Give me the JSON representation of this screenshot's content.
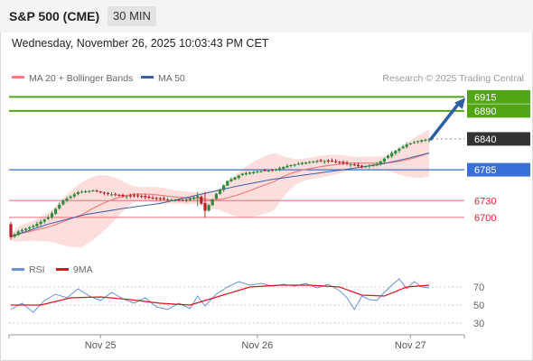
{
  "header": {
    "symbol": "S&P 500 (CME)",
    "timeframe": "30 MIN",
    "datetime": "Wednesday, November 26, 2025 10:03:43 PM CET"
  },
  "colors": {
    "ma20": "#f07c7c",
    "ma20_band_fill": "#fbd4d2",
    "ma50": "#3b5fa8",
    "candle_up": "#2f8a3e",
    "candle_down": "#b81f26",
    "target_line": "#52a515",
    "support_line": "#3a6fd8",
    "resistance_line": "#e46f7a",
    "pivot_box": "#333333",
    "rsi": "#6b8fd8",
    "rsi_ma": "#e0121e",
    "arrow": "#2b5fa2"
  },
  "chart_data": [
    {
      "type": "candlestick",
      "legend": [
        {
          "label": "MA 20 + Bollinger Bands",
          "color": "#f07c7c"
        },
        {
          "label": "MA 50",
          "color": "#3b5fa8"
        }
      ],
      "watermark": "Research © 2025 Trading Central",
      "x_ticks": [
        "Nov 25",
        "Nov 26",
        "Nov 27"
      ],
      "ylim": [
        6650,
        6930
      ],
      "levels": [
        {
          "value": 6915,
          "label": "6915",
          "kind": "target",
          "style": "box"
        },
        {
          "value": 6890,
          "label": "6890",
          "kind": "target",
          "style": "box"
        },
        {
          "value": 6840,
          "label": "6840",
          "kind": "pivot",
          "style": "box"
        },
        {
          "value": 6785,
          "label": "6785",
          "kind": "support",
          "style": "box"
        },
        {
          "value": 6730,
          "label": "6730",
          "kind": "resistance",
          "style": "text"
        },
        {
          "value": 6700,
          "label": "6700",
          "kind": "resistance",
          "style": "text"
        }
      ],
      "anchors": [
        [
          0,
          6665
        ],
        [
          2,
          6675
        ],
        [
          6,
          6685
        ],
        [
          10,
          6700
        ],
        [
          14,
          6730
        ],
        [
          18,
          6745
        ],
        [
          22,
          6748
        ],
        [
          26,
          6742
        ],
        [
          30,
          6738
        ],
        [
          34,
          6738
        ],
        [
          38,
          6734
        ],
        [
          42,
          6732
        ],
        [
          46,
          6730
        ],
        [
          50,
          6738
        ],
        [
          52,
          6712
        ],
        [
          55,
          6742
        ],
        [
          58,
          6765
        ],
        [
          62,
          6778
        ],
        [
          66,
          6782
        ],
        [
          70,
          6784
        ],
        [
          74,
          6792
        ],
        [
          78,
          6797
        ],
        [
          82,
          6801
        ],
        [
          86,
          6800
        ],
        [
          90,
          6796
        ],
        [
          94,
          6790
        ],
        [
          98,
          6795
        ],
        [
          102,
          6815
        ],
        [
          106,
          6830
        ],
        [
          110,
          6838
        ],
        [
          112,
          6839
        ]
      ],
      "ma50": [
        [
          0,
          6666
        ],
        [
          10,
          6688
        ],
        [
          20,
          6705
        ],
        [
          30,
          6716
        ],
        [
          40,
          6725
        ],
        [
          50,
          6740
        ],
        [
          60,
          6755
        ],
        [
          70,
          6768
        ],
        [
          80,
          6777
        ],
        [
          90,
          6786
        ],
        [
          100,
          6796
        ],
        [
          106,
          6805
        ],
        [
          112,
          6815
        ]
      ],
      "candle_count": 113,
      "projection": {
        "from": 6840,
        "to": 6915
      }
    },
    {
      "type": "line",
      "legend": [
        {
          "label": "RSI",
          "color": "#6b8fd8"
        },
        {
          "label": "9MA",
          "color": "#e0121e"
        }
      ],
      "y_ticks": [
        70,
        50,
        30
      ],
      "ylim": [
        20,
        80
      ],
      "rsi": [
        [
          0,
          45
        ],
        [
          3,
          52
        ],
        [
          6,
          42
        ],
        [
          9,
          55
        ],
        [
          12,
          62
        ],
        [
          15,
          58
        ],
        [
          18,
          68
        ],
        [
          21,
          60
        ],
        [
          24,
          55
        ],
        [
          27,
          64
        ],
        [
          30,
          57
        ],
        [
          33,
          52
        ],
        [
          36,
          58
        ],
        [
          39,
          48
        ],
        [
          42,
          45
        ],
        [
          45,
          52
        ],
        [
          48,
          46
        ],
        [
          50,
          60
        ],
        [
          52,
          49
        ],
        [
          55,
          62
        ],
        [
          58,
          70
        ],
        [
          61,
          76
        ],
        [
          64,
          72
        ],
        [
          67,
          74
        ],
        [
          70,
          71
        ],
        [
          73,
          73
        ],
        [
          76,
          71
        ],
        [
          79,
          74
        ],
        [
          82,
          69
        ],
        [
          85,
          73
        ],
        [
          88,
          66
        ],
        [
          90,
          58
        ],
        [
          92,
          45
        ],
        [
          94,
          60
        ],
        [
          96,
          56
        ],
        [
          98,
          55
        ],
        [
          100,
          64
        ],
        [
          102,
          72
        ],
        [
          104,
          79
        ],
        [
          106,
          68
        ],
        [
          108,
          76
        ],
        [
          110,
          70
        ],
        [
          112,
          69
        ]
      ],
      "rsi_ma": [
        [
          0,
          50
        ],
        [
          8,
          50
        ],
        [
          16,
          58
        ],
        [
          24,
          59
        ],
        [
          32,
          56
        ],
        [
          40,
          52
        ],
        [
          48,
          50
        ],
        [
          56,
          60
        ],
        [
          64,
          70
        ],
        [
          72,
          72
        ],
        [
          80,
          72
        ],
        [
          88,
          70
        ],
        [
          94,
          61
        ],
        [
          100,
          60
        ],
        [
          106,
          70
        ],
        [
          112,
          72
        ]
      ]
    }
  ]
}
